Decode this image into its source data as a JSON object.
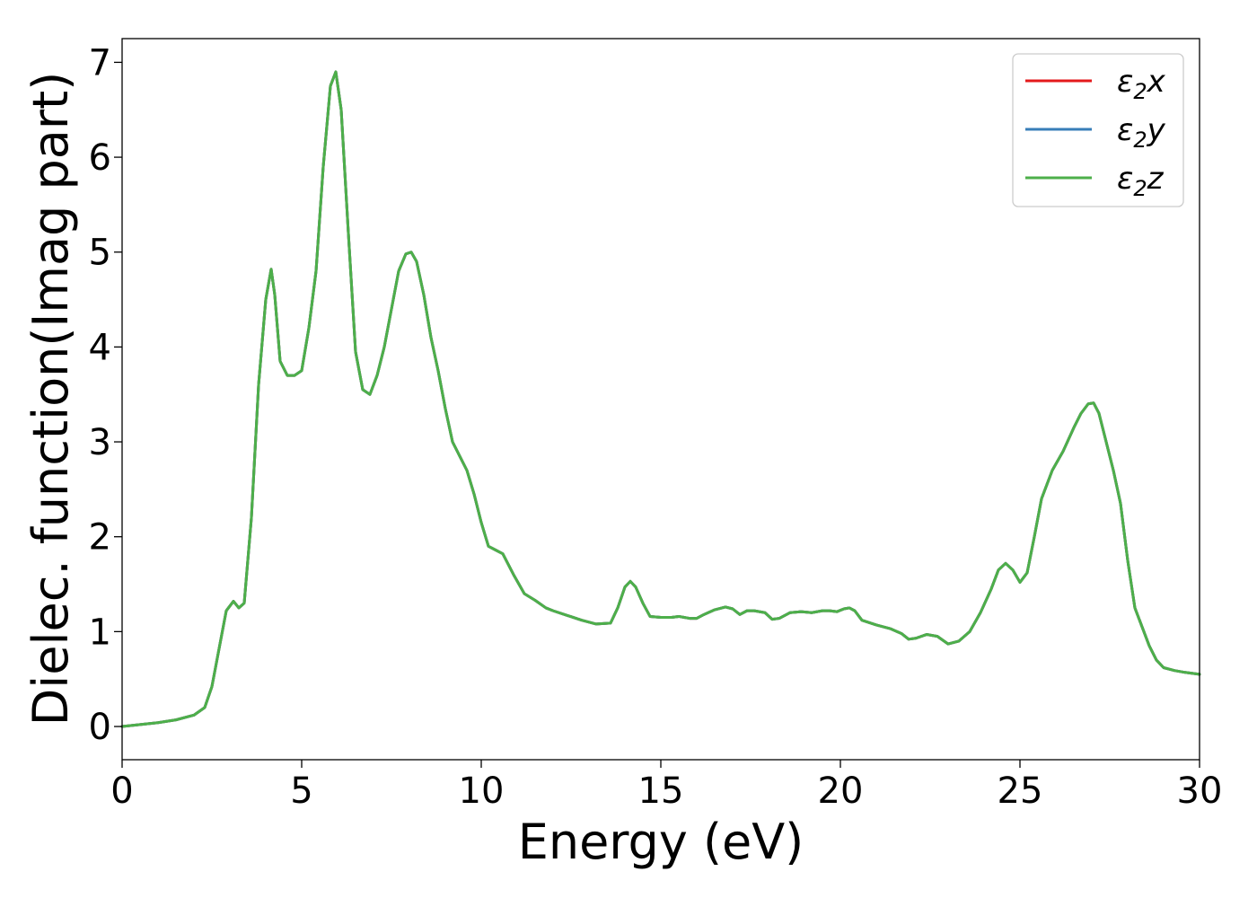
{
  "chart_data": {
    "type": "line",
    "title": "",
    "xlabel": "Energy (eV)",
    "ylabel": "Dielec. function(Imag part)",
    "xlim": [
      0,
      30
    ],
    "ylim": [
      -0.35,
      7.25
    ],
    "xticks": [
      0,
      5,
      10,
      15,
      20,
      25,
      30
    ],
    "yticks": [
      0,
      1,
      2,
      3,
      4,
      5,
      6,
      7
    ],
    "grid": false,
    "legend_position": "top-right",
    "x": [
      0,
      0.5,
      1,
      1.5,
      2,
      2.3,
      2.5,
      2.7,
      2.9,
      3.1,
      3.25,
      3.4,
      3.6,
      3.8,
      4,
      4.15,
      4.25,
      4.4,
      4.6,
      4.8,
      5.0,
      5.2,
      5.4,
      5.6,
      5.8,
      5.95,
      6.1,
      6.3,
      6.5,
      6.7,
      6.9,
      7.1,
      7.3,
      7.5,
      7.7,
      7.9,
      8.05,
      8.2,
      8.4,
      8.6,
      8.8,
      9.0,
      9.2,
      9.4,
      9.6,
      9.8,
      10.0,
      10.2,
      10.4,
      10.6,
      10.9,
      11.2,
      11.5,
      11.8,
      12.0,
      12.4,
      12.8,
      13.2,
      13.6,
      13.8,
      14.0,
      14.15,
      14.3,
      14.5,
      14.7,
      15.0,
      15.3,
      15.5,
      15.8,
      16.0,
      16.2,
      16.5,
      16.8,
      17.0,
      17.2,
      17.4,
      17.6,
      17.9,
      18.1,
      18.3,
      18.6,
      18.9,
      19.2,
      19.5,
      19.7,
      19.9,
      20.1,
      20.25,
      20.4,
      20.6,
      21.0,
      21.4,
      21.7,
      21.9,
      22.1,
      22.4,
      22.7,
      23.0,
      23.3,
      23.6,
      23.9,
      24.2,
      24.4,
      24.6,
      24.8,
      25.0,
      25.2,
      25.4,
      25.6,
      25.9,
      26.2,
      26.5,
      26.7,
      26.9,
      27.05,
      27.2,
      27.4,
      27.6,
      27.8,
      28.0,
      28.2,
      28.4,
      28.6,
      28.8,
      29.0,
      29.3,
      29.6,
      30.0
    ],
    "series": [
      {
        "name": "ε2x",
        "color": "#e41a1c",
        "y": [
          0.0,
          0.02,
          0.04,
          0.07,
          0.12,
          0.2,
          0.42,
          0.82,
          1.22,
          1.32,
          1.25,
          1.3,
          2.2,
          3.6,
          4.5,
          4.82,
          4.55,
          3.85,
          3.7,
          3.7,
          3.75,
          4.2,
          4.8,
          5.9,
          6.75,
          6.9,
          6.5,
          5.2,
          3.95,
          3.55,
          3.5,
          3.7,
          4.0,
          4.4,
          4.8,
          4.98,
          5.0,
          4.9,
          4.55,
          4.1,
          3.75,
          3.35,
          3.0,
          2.85,
          2.7,
          2.45,
          2.15,
          1.9,
          1.86,
          1.82,
          1.6,
          1.4,
          1.33,
          1.25,
          1.22,
          1.17,
          1.12,
          1.08,
          1.09,
          1.25,
          1.47,
          1.53,
          1.47,
          1.3,
          1.16,
          1.15,
          1.15,
          1.16,
          1.14,
          1.14,
          1.18,
          1.23,
          1.26,
          1.24,
          1.18,
          1.22,
          1.22,
          1.2,
          1.13,
          1.14,
          1.2,
          1.21,
          1.2,
          1.22,
          1.22,
          1.21,
          1.24,
          1.25,
          1.22,
          1.12,
          1.07,
          1.03,
          0.98,
          0.92,
          0.93,
          0.97,
          0.95,
          0.87,
          0.9,
          1.0,
          1.2,
          1.45,
          1.65,
          1.72,
          1.65,
          1.52,
          1.62,
          2.0,
          2.4,
          2.7,
          2.9,
          3.15,
          3.3,
          3.4,
          3.41,
          3.3,
          3.0,
          2.7,
          2.35,
          1.75,
          1.25,
          1.05,
          0.85,
          0.7,
          0.62,
          0.59,
          0.57,
          0.55
        ]
      },
      {
        "name": "ε2y",
        "color": "#377eb8",
        "y": [
          0.0,
          0.02,
          0.04,
          0.07,
          0.12,
          0.2,
          0.42,
          0.82,
          1.22,
          1.32,
          1.25,
          1.3,
          2.2,
          3.6,
          4.5,
          4.82,
          4.55,
          3.85,
          3.7,
          3.7,
          3.75,
          4.2,
          4.8,
          5.9,
          6.75,
          6.9,
          6.5,
          5.2,
          3.95,
          3.55,
          3.5,
          3.7,
          4.0,
          4.4,
          4.8,
          4.98,
          5.0,
          4.9,
          4.55,
          4.1,
          3.75,
          3.35,
          3.0,
          2.85,
          2.7,
          2.45,
          2.15,
          1.9,
          1.86,
          1.82,
          1.6,
          1.4,
          1.33,
          1.25,
          1.22,
          1.17,
          1.12,
          1.08,
          1.09,
          1.25,
          1.47,
          1.53,
          1.47,
          1.3,
          1.16,
          1.15,
          1.15,
          1.16,
          1.14,
          1.14,
          1.18,
          1.23,
          1.26,
          1.24,
          1.18,
          1.22,
          1.22,
          1.2,
          1.13,
          1.14,
          1.2,
          1.21,
          1.2,
          1.22,
          1.22,
          1.21,
          1.24,
          1.25,
          1.22,
          1.12,
          1.07,
          1.03,
          0.98,
          0.92,
          0.93,
          0.97,
          0.95,
          0.87,
          0.9,
          1.0,
          1.2,
          1.45,
          1.65,
          1.72,
          1.65,
          1.52,
          1.62,
          2.0,
          2.4,
          2.7,
          2.9,
          3.15,
          3.3,
          3.4,
          3.41,
          3.3,
          3.0,
          2.7,
          2.35,
          1.75,
          1.25,
          1.05,
          0.85,
          0.7,
          0.62,
          0.59,
          0.57,
          0.55
        ]
      },
      {
        "name": "ε2z",
        "color": "#4daf4a",
        "y": [
          0.0,
          0.02,
          0.04,
          0.07,
          0.12,
          0.2,
          0.42,
          0.82,
          1.22,
          1.32,
          1.25,
          1.3,
          2.2,
          3.6,
          4.5,
          4.82,
          4.55,
          3.85,
          3.7,
          3.7,
          3.75,
          4.2,
          4.8,
          5.9,
          6.75,
          6.9,
          6.5,
          5.2,
          3.95,
          3.55,
          3.5,
          3.7,
          4.0,
          4.4,
          4.8,
          4.98,
          5.0,
          4.9,
          4.55,
          4.1,
          3.75,
          3.35,
          3.0,
          2.85,
          2.7,
          2.45,
          2.15,
          1.9,
          1.86,
          1.82,
          1.6,
          1.4,
          1.33,
          1.25,
          1.22,
          1.17,
          1.12,
          1.08,
          1.09,
          1.25,
          1.47,
          1.53,
          1.47,
          1.3,
          1.16,
          1.15,
          1.15,
          1.16,
          1.14,
          1.14,
          1.18,
          1.23,
          1.26,
          1.24,
          1.18,
          1.22,
          1.22,
          1.2,
          1.13,
          1.14,
          1.2,
          1.21,
          1.2,
          1.22,
          1.22,
          1.21,
          1.24,
          1.25,
          1.22,
          1.12,
          1.07,
          1.03,
          0.98,
          0.92,
          0.93,
          0.97,
          0.95,
          0.87,
          0.9,
          1.0,
          1.2,
          1.45,
          1.65,
          1.72,
          1.65,
          1.52,
          1.62,
          2.0,
          2.4,
          2.7,
          2.9,
          3.15,
          3.3,
          3.4,
          3.41,
          3.3,
          3.0,
          2.7,
          2.35,
          1.75,
          1.25,
          1.05,
          0.85,
          0.7,
          0.62,
          0.59,
          0.57,
          0.55
        ]
      }
    ]
  }
}
